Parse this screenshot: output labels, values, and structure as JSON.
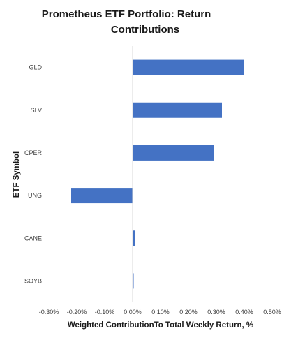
{
  "chart_data": {
    "type": "bar",
    "orientation": "horizontal",
    "title": "Prometheus ETF Portfolio: Return Contributions",
    "title_lines": [
      "Prometheus ETF Portfolio: Return",
      "Contributions"
    ],
    "xlabel": "Weighted ContributionTo Total Weekly Return, %",
    "ylabel": "ETF Symbol",
    "categories": [
      "GLD",
      "SLV",
      "CPER",
      "UNG",
      "CANE",
      "SOYB"
    ],
    "values": [
      0.4,
      0.32,
      0.29,
      -0.22,
      0.008,
      0.003
    ],
    "xlim": [
      -0.3,
      0.5
    ],
    "x_ticks": [
      -0.3,
      -0.2,
      -0.1,
      0.0,
      0.1,
      0.2,
      0.3,
      0.4,
      0.5
    ],
    "x_tick_labels": [
      "-0.30%",
      "-0.20%",
      "-0.10%",
      "0.00%",
      "0.10%",
      "0.20%",
      "0.30%",
      "0.40%",
      "0.50%"
    ],
    "grid": false,
    "legend": "none",
    "bar_color": "#4472C4",
    "zero_line_color": "#D9D9D9"
  }
}
